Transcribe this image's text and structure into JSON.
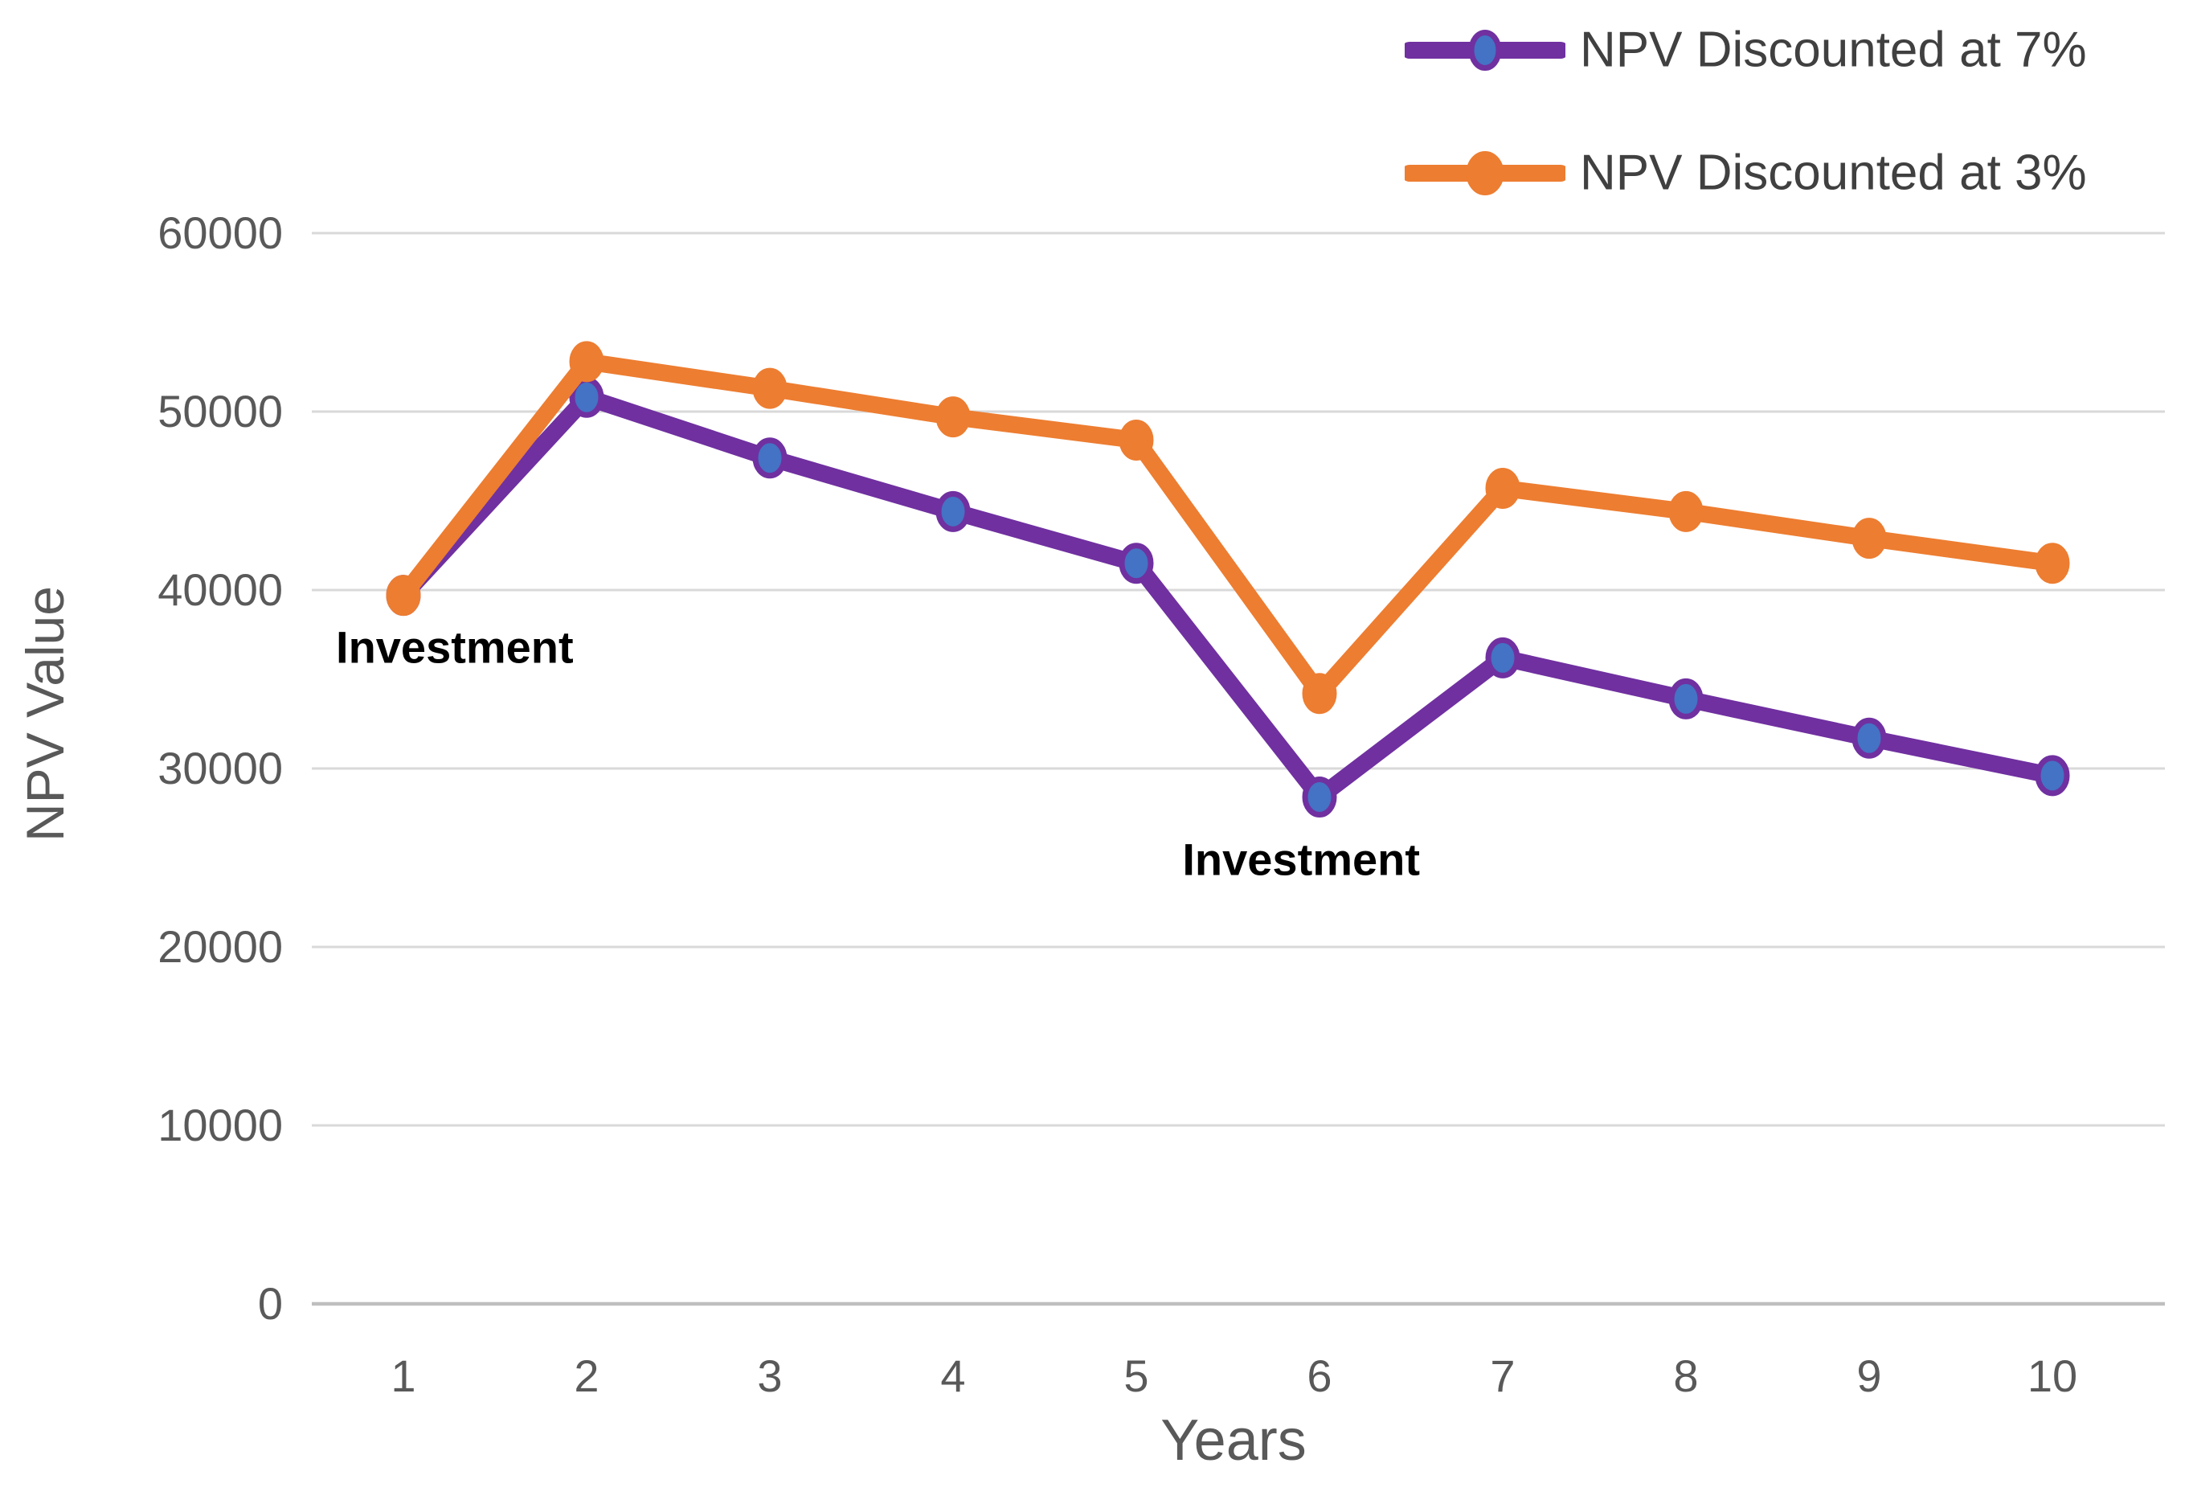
{
  "chart_data": {
    "type": "line",
    "title": "",
    "xlabel": "Years",
    "ylabel": "NPV Value",
    "categories": [
      "1",
      "2",
      "3",
      "4",
      "5",
      "6",
      "7",
      "8",
      "9",
      "10"
    ],
    "series": [
      {
        "name": "NPV Discounted at 7%",
        "color": "#7030A0",
        "marker_fill": "#4472C4",
        "marker_stroke": "#7030A0",
        "values": [
          39700,
          50800,
          47400,
          44400,
          41500,
          28400,
          36200,
          33900,
          31700,
          29600
        ]
      },
      {
        "name": "NPV Discounted at 3%",
        "color": "#ED7D31",
        "marker_fill": "#ED7D31",
        "marker_stroke": "#ED7D31",
        "values": [
          39700,
          52800,
          51300,
          49700,
          48400,
          34200,
          45700,
          44400,
          42900,
          41500
        ]
      }
    ],
    "ylim": [
      0,
      60000
    ],
    "ytick_step": 10000,
    "grid": true,
    "legend_position": "top-right",
    "annotations": [
      {
        "text": "Investment",
        "at_year": 1.28,
        "at_value": 36800
      },
      {
        "text": "Investment",
        "at_year": 5.9,
        "at_value": 24900
      }
    ],
    "colors": {
      "axis_text": "#595959",
      "gridline": "#D9D9D9",
      "axis_line": "#BFBFBF",
      "legend_text": "#404040",
      "annotation_text": "#000000",
      "background": "#FFFFFF"
    }
  }
}
